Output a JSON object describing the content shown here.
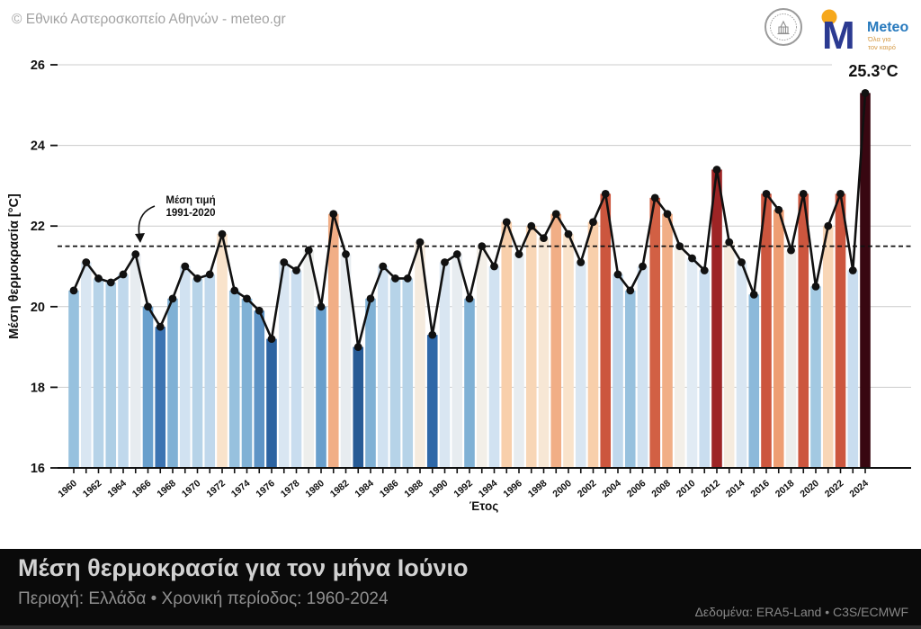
{
  "header": {
    "copyright": "© Εθνικό Αστεροσκοπείο Αθηνών - meteo.gr",
    "meteo_logo": {
      "m": "M",
      "name": "Meteo",
      "tagline1": "Όλα για",
      "tagline2": "τον καιρό",
      "blue": "#2b3a91",
      "text_blue": "#2779bd",
      "orange": "#f6a81c"
    }
  },
  "chart_data": {
    "type": "bar",
    "line_overlay": true,
    "title": "Μέση θερμοκρασία για τον μήνα Ιούνιο",
    "xlabel": "Έτος",
    "ylabel": "Μέση θερμοκρασία [°C]",
    "ylim": [
      16,
      26
    ],
    "yticks": [
      16,
      18,
      20,
      22,
      24,
      26
    ],
    "xtick_step": 2,
    "grid": true,
    "legend": "none",
    "mean_value": 21.5,
    "mean_label_line1": "Μέση τιμή",
    "mean_label_line2": "1991-2020",
    "max_label": "25.3°C",
    "years": [
      1960,
      1961,
      1962,
      1963,
      1964,
      1965,
      1966,
      1967,
      1968,
      1969,
      1970,
      1971,
      1972,
      1973,
      1974,
      1975,
      1976,
      1977,
      1978,
      1979,
      1980,
      1981,
      1982,
      1983,
      1984,
      1985,
      1986,
      1987,
      1988,
      1989,
      1990,
      1991,
      1992,
      1993,
      1994,
      1995,
      1996,
      1997,
      1998,
      1999,
      2000,
      2001,
      2002,
      2003,
      2004,
      2005,
      2006,
      2007,
      2008,
      2009,
      2010,
      2011,
      2012,
      2013,
      2014,
      2015,
      2016,
      2017,
      2018,
      2019,
      2020,
      2021,
      2022,
      2023,
      2024
    ],
    "values": [
      20.4,
      21.1,
      20.7,
      20.6,
      20.8,
      21.3,
      20.0,
      19.5,
      20.2,
      21.0,
      20.7,
      20.8,
      21.8,
      20.4,
      20.2,
      19.9,
      19.2,
      21.1,
      20.9,
      21.4,
      20.0,
      22.3,
      21.3,
      19.0,
      20.2,
      21.0,
      20.7,
      20.7,
      21.6,
      19.3,
      21.1,
      21.3,
      20.2,
      21.5,
      21.0,
      22.1,
      21.3,
      22.0,
      21.7,
      22.3,
      21.8,
      21.1,
      22.1,
      22.8,
      20.8,
      20.4,
      21.0,
      22.7,
      22.3,
      21.5,
      21.2,
      20.9,
      23.4,
      21.6,
      21.1,
      20.3,
      22.8,
      22.4,
      21.4,
      22.8,
      20.5,
      22.0,
      22.8,
      20.9,
      25.3
    ],
    "colormap": [
      [
        -2.6,
        "#24568e"
      ],
      [
        -2.2,
        "#2f68a8"
      ],
      [
        -1.8,
        "#4880bc"
      ],
      [
        -1.4,
        "#74a9d1"
      ],
      [
        -1.0,
        "#a3c9e2"
      ],
      [
        -0.6,
        "#c9ddef"
      ],
      [
        -0.3,
        "#e1ebf4"
      ],
      [
        0.0,
        "#f3efe8"
      ],
      [
        0.3,
        "#f9e3cb"
      ],
      [
        0.6,
        "#f8cfab"
      ],
      [
        0.9,
        "#ee9e73"
      ],
      [
        1.2,
        "#d26044"
      ],
      [
        1.45,
        "#c24834"
      ],
      [
        1.7,
        "#ad3026"
      ],
      [
        2.0,
        "#951e24"
      ],
      [
        2.4,
        "#751320"
      ],
      [
        3.0,
        "#4f0a19"
      ],
      [
        3.8,
        "#380711"
      ]
    ],
    "line_color": "#111111",
    "grid_color": "#cccccc"
  },
  "footer": {
    "title": "Μέση θερμοκρασία για τον μήνα Ιούνιο",
    "subtitle": "Περιοχή: Ελλάδα • Χρονική περίοδος: 1960-2024",
    "credit": "Δεδομένα: ERA5-Land • C3S/ECMWF"
  }
}
